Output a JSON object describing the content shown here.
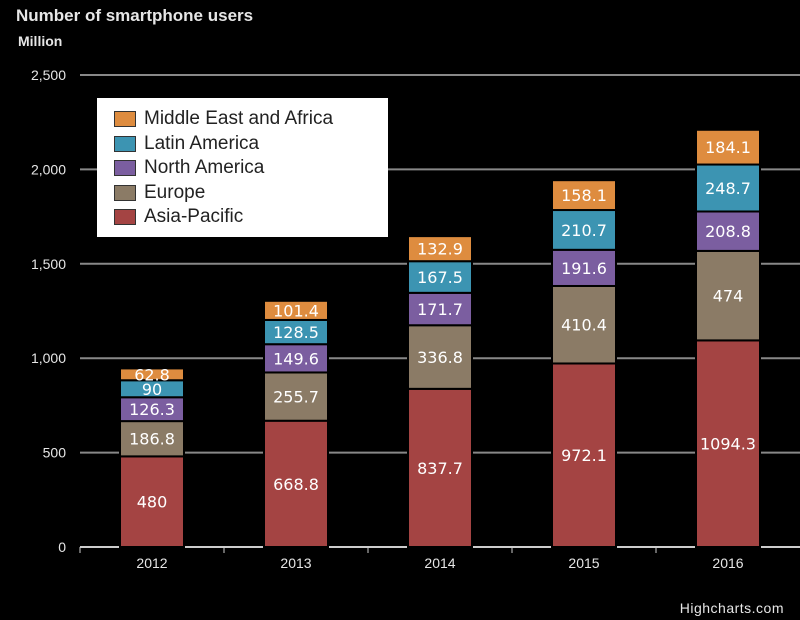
{
  "title": "Number of smartphone users",
  "unit": "Million",
  "credit": "Highcharts.com",
  "chart_data": {
    "type": "bar",
    "stacked": true,
    "title": "Number of smartphone users",
    "ylabel": "Million",
    "xlabel": "",
    "ylim": [
      0,
      2500
    ],
    "yticks": [
      0,
      500,
      1000,
      1500,
      2000,
      2500
    ],
    "ytick_labels": [
      "0",
      "500",
      "1,000",
      "1,500",
      "2,000",
      "2,500"
    ],
    "categories": [
      "2012",
      "2013",
      "2014",
      "2015",
      "2016"
    ],
    "series": [
      {
        "name": "Asia-Pacific",
        "color": "#a44443",
        "values": [
          480,
          668.8,
          837.7,
          972.1,
          1094.3
        ],
        "labels": [
          "480",
          "668.8",
          "837.7",
          "972.1",
          "1094.3"
        ]
      },
      {
        "name": "Europe",
        "color": "#8b7b66",
        "values": [
          186.8,
          255.7,
          336.8,
          410.4,
          474
        ],
        "labels": [
          "186.8",
          "255.7",
          "336.8",
          "410.4",
          "474"
        ]
      },
      {
        "name": "North America",
        "color": "#7b5ea0",
        "values": [
          126.3,
          149.6,
          171.7,
          191.6,
          208.8
        ],
        "labels": [
          "126.3",
          "149.6",
          "171.7",
          "191.6",
          "208.8"
        ]
      },
      {
        "name": "Latin America",
        "color": "#3c94b2",
        "values": [
          90,
          128.5,
          167.5,
          210.7,
          248.7
        ],
        "labels": [
          "90",
          "128.5",
          "167.5",
          "210.7",
          "248.7"
        ]
      },
      {
        "name": "Middle East and Africa",
        "color": "#de8c3f",
        "values": [
          62.8,
          101.4,
          132.9,
          158.1,
          184.1
        ],
        "labels": [
          "62.8",
          "101.4",
          "132.9",
          "158.1",
          "184.1"
        ]
      }
    ],
    "legend": [
      "Middle East and Africa",
      "Latin America",
      "North America",
      "Europe",
      "Asia-Pacific"
    ],
    "legend_position": "top-left",
    "grid": true
  }
}
